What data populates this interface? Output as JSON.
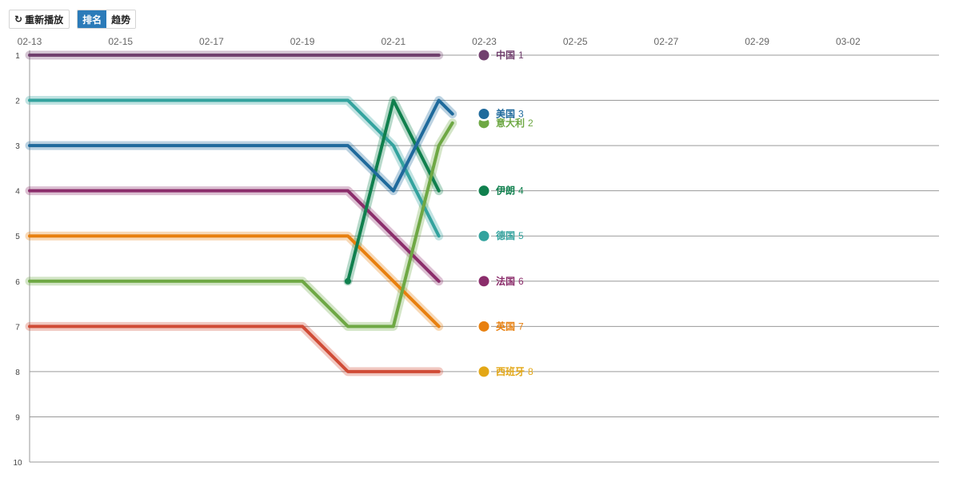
{
  "toolbar": {
    "replay_icon": "refresh-icon",
    "replay_label": "重新播放",
    "tabs": [
      {
        "label": "排名",
        "active": true
      },
      {
        "label": "趋势",
        "active": false
      }
    ]
  },
  "chart_data": {
    "type": "line",
    "subtype": "rank-bump",
    "x_ticks": [
      "02-13",
      "02-15",
      "02-17",
      "02-19",
      "02-21",
      "02-23",
      "02-25",
      "02-27",
      "02-29",
      "03-02"
    ],
    "y_ticks": [
      1,
      2,
      3,
      4,
      5,
      6,
      7,
      8,
      9,
      10
    ],
    "x_range": [
      "02-13",
      "03-04"
    ],
    "y_range": [
      1,
      10
    ],
    "y_inverted": true,
    "grid": "horizontal",
    "series": [
      {
        "name": "中国",
        "color": "#71406e",
        "rank_label": "1",
        "points": [
          [
            "02-13",
            1
          ],
          [
            "02-22",
            1
          ]
        ]
      },
      {
        "name": "美国",
        "color": "#1f6a9c",
        "rank_label": "3",
        "points": [
          [
            "02-13",
            3
          ],
          [
            "02-20",
            3
          ],
          [
            "02-21",
            4
          ],
          [
            "02-22",
            2
          ],
          [
            "02-22.3",
            2.3
          ]
        ]
      },
      {
        "name": "意大利",
        "color": "#6ea844",
        "rank_label": "2",
        "points": [
          [
            "02-13",
            6
          ],
          [
            "02-19",
            6
          ],
          [
            "02-20",
            7
          ],
          [
            "02-21",
            7
          ],
          [
            "02-22",
            3
          ],
          [
            "02-22.3",
            2.5
          ]
        ]
      },
      {
        "name": "伊朗",
        "color": "#10804e",
        "rank_label": "4",
        "points": [
          [
            "02-20",
            6
          ],
          [
            "02-21",
            2
          ],
          [
            "02-22",
            4
          ]
        ]
      },
      {
        "name": "德国",
        "color": "#33a39e",
        "rank_label": "5",
        "points": [
          [
            "02-13",
            2
          ],
          [
            "02-20",
            2
          ],
          [
            "02-21",
            3
          ],
          [
            "02-22",
            5
          ]
        ]
      },
      {
        "name": "法国",
        "color": "#8b2d6b",
        "rank_label": "6",
        "points": [
          [
            "02-13",
            4
          ],
          [
            "02-20",
            4
          ],
          [
            "02-22",
            6
          ]
        ]
      },
      {
        "name": "英国",
        "color": "#e8800f",
        "rank_label": "7",
        "points": [
          [
            "02-13",
            5
          ],
          [
            "02-20",
            5
          ],
          [
            "02-22",
            7
          ]
        ]
      },
      {
        "name": "西班牙",
        "color": "#d04b36",
        "rank_label": "8",
        "label_color": "#e3a716",
        "points": [
          [
            "02-13",
            7
          ],
          [
            "02-19",
            7
          ],
          [
            "02-20",
            8
          ],
          [
            "02-22",
            8
          ]
        ]
      }
    ]
  }
}
